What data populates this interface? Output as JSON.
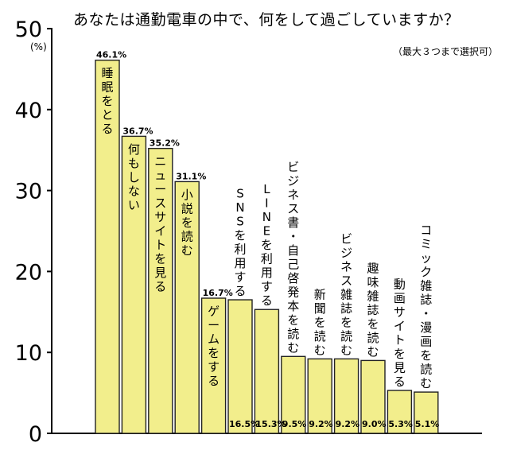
{
  "chart_data": {
    "type": "bar",
    "title": "あなたは通勤電車の中で、何をして過ごしていますか？",
    "subtitle": "（最大３つまで選択可）",
    "ylabel": "(%)",
    "xlabel": "",
    "ylim": [
      0,
      50
    ],
    "yticks": [
      0,
      10,
      20,
      30,
      40,
      50
    ],
    "grid": false,
    "bar_color": "#f2ee8c",
    "categories": [
      "睡眠をとる",
      "何もしない",
      "ニュースサイトを見る",
      "小説を読む",
      "ゲームをする",
      "SNSを利用する",
      "LINEを利用する",
      "ビジネス書・自己啓発本を読む",
      "新聞を読む",
      "ビジネス雑誌を読む",
      "趣味雑誌を読む",
      "動画サイトを見る",
      "コミック雑誌・漫画を読む"
    ],
    "values": [
      46.1,
      36.7,
      35.2,
      31.1,
      16.7,
      16.5,
      15.3,
      9.5,
      9.2,
      9.2,
      9.0,
      5.3,
      5.1
    ],
    "value_labels": [
      "46.1%",
      "36.7%",
      "35.2%",
      "31.1%",
      "16.7%",
      "16.5%",
      "15.3%",
      "9.5%",
      "9.2%",
      "9.2%",
      "9.0%",
      "5.3%",
      "5.1%"
    ]
  }
}
